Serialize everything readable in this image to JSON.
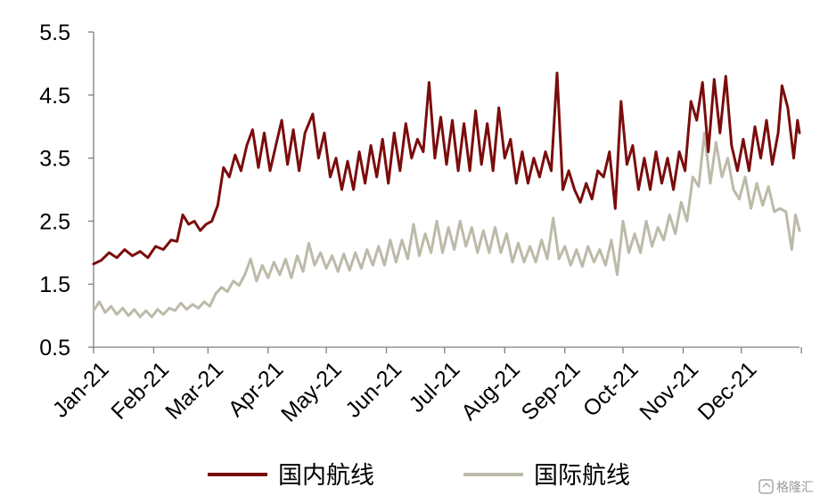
{
  "chart_data": {
    "type": "line",
    "title": "",
    "xlabel": "",
    "ylabel": "",
    "ylim": [
      0.5,
      5.5
    ],
    "yticks": [
      0.5,
      1.5,
      2.5,
      3.5,
      4.5,
      5.5
    ],
    "ytick_labels": [
      "0.5",
      "1.5",
      "2.5",
      "3.5",
      "4.5",
      "5.5"
    ],
    "xtick_labels": [
      "Jan-21",
      "Feb-21",
      "Mar-21",
      "Apr-21",
      "May-21",
      "Jun-21",
      "Jul-21",
      "Aug-21",
      "Sep-21",
      "Oct-21",
      "Nov-21",
      "Dec-21"
    ],
    "x_range": [
      "2021-01-01",
      "2021-12-31"
    ],
    "grid": false,
    "legend_position": "bottom",
    "series": [
      {
        "name": "国内航线",
        "color": "#7b0c0c",
        "points": [
          [
            "2021-01-01",
            1.82
          ],
          [
            "2021-01-05",
            1.88
          ],
          [
            "2021-01-09",
            2.0
          ],
          [
            "2021-01-13",
            1.92
          ],
          [
            "2021-01-17",
            2.05
          ],
          [
            "2021-01-21",
            1.95
          ],
          [
            "2021-01-25",
            2.02
          ],
          [
            "2021-01-29",
            1.92
          ],
          [
            "2021-02-02",
            2.1
          ],
          [
            "2021-02-06",
            2.05
          ],
          [
            "2021-02-10",
            2.2
          ],
          [
            "2021-02-13",
            2.18
          ],
          [
            "2021-02-16",
            2.6
          ],
          [
            "2021-02-19",
            2.45
          ],
          [
            "2021-02-22",
            2.5
          ],
          [
            "2021-02-25",
            2.35
          ],
          [
            "2021-02-28",
            2.45
          ],
          [
            "2021-03-03",
            2.5
          ],
          [
            "2021-03-06",
            2.75
          ],
          [
            "2021-03-09",
            3.35
          ],
          [
            "2021-03-12",
            3.2
          ],
          [
            "2021-03-15",
            3.55
          ],
          [
            "2021-03-18",
            3.3
          ],
          [
            "2021-03-21",
            3.7
          ],
          [
            "2021-03-24",
            3.95
          ],
          [
            "2021-03-27",
            3.35
          ],
          [
            "2021-03-30",
            3.9
          ],
          [
            "2021-04-02",
            3.3
          ],
          [
            "2021-04-05",
            3.7
          ],
          [
            "2021-04-08",
            4.1
          ],
          [
            "2021-04-11",
            3.4
          ],
          [
            "2021-04-14",
            3.95
          ],
          [
            "2021-04-17",
            3.3
          ],
          [
            "2021-04-20",
            3.9
          ],
          [
            "2021-04-24",
            4.2
          ],
          [
            "2021-04-27",
            3.5
          ],
          [
            "2021-04-30",
            3.9
          ],
          [
            "2021-05-03",
            3.2
          ],
          [
            "2021-05-06",
            3.5
          ],
          [
            "2021-05-09",
            3.0
          ],
          [
            "2021-05-12",
            3.45
          ],
          [
            "2021-05-15",
            3.0
          ],
          [
            "2021-05-18",
            3.6
          ],
          [
            "2021-05-21",
            3.1
          ],
          [
            "2021-05-24",
            3.7
          ],
          [
            "2021-05-27",
            3.2
          ],
          [
            "2021-05-30",
            3.8
          ],
          [
            "2021-06-02",
            3.1
          ],
          [
            "2021-06-05",
            3.9
          ],
          [
            "2021-06-08",
            3.3
          ],
          [
            "2021-06-11",
            4.05
          ],
          [
            "2021-06-14",
            3.5
          ],
          [
            "2021-06-17",
            3.8
          ],
          [
            "2021-06-20",
            3.6
          ],
          [
            "2021-06-23",
            4.7
          ],
          [
            "2021-06-26",
            3.5
          ],
          [
            "2021-06-29",
            4.15
          ],
          [
            "2021-07-02",
            3.4
          ],
          [
            "2021-07-05",
            4.1
          ],
          [
            "2021-07-08",
            3.3
          ],
          [
            "2021-07-11",
            4.05
          ],
          [
            "2021-07-14",
            3.3
          ],
          [
            "2021-07-17",
            4.25
          ],
          [
            "2021-07-20",
            3.4
          ],
          [
            "2021-07-23",
            4.05
          ],
          [
            "2021-07-26",
            3.3
          ],
          [
            "2021-07-29",
            4.3
          ],
          [
            "2021-08-01",
            3.5
          ],
          [
            "2021-08-04",
            3.8
          ],
          [
            "2021-08-07",
            3.1
          ],
          [
            "2021-08-10",
            3.6
          ],
          [
            "2021-08-13",
            3.1
          ],
          [
            "2021-08-16",
            3.5
          ],
          [
            "2021-08-19",
            3.2
          ],
          [
            "2021-08-22",
            3.6
          ],
          [
            "2021-08-25",
            3.3
          ],
          [
            "2021-08-28",
            4.85
          ],
          [
            "2021-08-31",
            3.0
          ],
          [
            "2021-09-03",
            3.3
          ],
          [
            "2021-09-06",
            3.0
          ],
          [
            "2021-09-09",
            2.8
          ],
          [
            "2021-09-12",
            3.1
          ],
          [
            "2021-09-15",
            2.85
          ],
          [
            "2021-09-18",
            3.3
          ],
          [
            "2021-09-21",
            3.2
          ],
          [
            "2021-09-24",
            3.6
          ],
          [
            "2021-09-27",
            2.7
          ],
          [
            "2021-09-30",
            4.4
          ],
          [
            "2021-10-03",
            3.4
          ],
          [
            "2021-10-06",
            3.7
          ],
          [
            "2021-10-09",
            3.0
          ],
          [
            "2021-10-12",
            3.5
          ],
          [
            "2021-10-15",
            3.0
          ],
          [
            "2021-10-18",
            3.6
          ],
          [
            "2021-10-21",
            3.1
          ],
          [
            "2021-10-24",
            3.5
          ],
          [
            "2021-10-27",
            3.0
          ],
          [
            "2021-10-30",
            3.6
          ],
          [
            "2021-11-02",
            3.3
          ],
          [
            "2021-11-05",
            4.4
          ],
          [
            "2021-11-08",
            4.1
          ],
          [
            "2021-11-11",
            4.7
          ],
          [
            "2021-11-14",
            3.6
          ],
          [
            "2021-11-17",
            4.75
          ],
          [
            "2021-11-20",
            3.9
          ],
          [
            "2021-11-23",
            4.8
          ],
          [
            "2021-11-26",
            3.7
          ],
          [
            "2021-11-29",
            3.3
          ],
          [
            "2021-12-02",
            3.8
          ],
          [
            "2021-12-05",
            3.3
          ],
          [
            "2021-12-08",
            4.0
          ],
          [
            "2021-12-11",
            3.5
          ],
          [
            "2021-12-14",
            4.1
          ],
          [
            "2021-12-17",
            3.4
          ],
          [
            "2021-12-20",
            3.9
          ],
          [
            "2021-12-22",
            4.65
          ],
          [
            "2021-12-25",
            4.3
          ],
          [
            "2021-12-28",
            3.5
          ],
          [
            "2021-12-30",
            4.1
          ],
          [
            "2021-12-31",
            3.9
          ]
        ]
      },
      {
        "name": "国际航线",
        "color": "#bcbaa8",
        "points": [
          [
            "2021-01-01",
            1.08
          ],
          [
            "2021-01-04",
            1.22
          ],
          [
            "2021-01-07",
            1.05
          ],
          [
            "2021-01-10",
            1.15
          ],
          [
            "2021-01-13",
            1.02
          ],
          [
            "2021-01-16",
            1.12
          ],
          [
            "2021-01-19",
            1.0
          ],
          [
            "2021-01-22",
            1.1
          ],
          [
            "2021-01-25",
            0.98
          ],
          [
            "2021-01-28",
            1.08
          ],
          [
            "2021-01-31",
            0.98
          ],
          [
            "2021-02-03",
            1.1
          ],
          [
            "2021-02-06",
            1.02
          ],
          [
            "2021-02-09",
            1.12
          ],
          [
            "2021-02-12",
            1.08
          ],
          [
            "2021-02-15",
            1.2
          ],
          [
            "2021-02-18",
            1.1
          ],
          [
            "2021-02-21",
            1.18
          ],
          [
            "2021-02-24",
            1.12
          ],
          [
            "2021-02-27",
            1.22
          ],
          [
            "2021-03-02",
            1.15
          ],
          [
            "2021-03-05",
            1.35
          ],
          [
            "2021-03-08",
            1.45
          ],
          [
            "2021-03-11",
            1.38
          ],
          [
            "2021-03-14",
            1.55
          ],
          [
            "2021-03-17",
            1.48
          ],
          [
            "2021-03-20",
            1.65
          ],
          [
            "2021-03-23",
            1.9
          ],
          [
            "2021-03-26",
            1.55
          ],
          [
            "2021-03-29",
            1.8
          ],
          [
            "2021-04-01",
            1.6
          ],
          [
            "2021-04-04",
            1.85
          ],
          [
            "2021-04-07",
            1.65
          ],
          [
            "2021-04-10",
            1.9
          ],
          [
            "2021-04-13",
            1.6
          ],
          [
            "2021-04-16",
            1.95
          ],
          [
            "2021-04-19",
            1.7
          ],
          [
            "2021-04-22",
            2.15
          ],
          [
            "2021-04-25",
            1.8
          ],
          [
            "2021-04-28",
            2.0
          ],
          [
            "2021-05-01",
            1.75
          ],
          [
            "2021-05-04",
            1.95
          ],
          [
            "2021-05-07",
            1.7
          ],
          [
            "2021-05-10",
            1.98
          ],
          [
            "2021-05-13",
            1.72
          ],
          [
            "2021-05-16",
            2.0
          ],
          [
            "2021-05-19",
            1.75
          ],
          [
            "2021-05-22",
            2.05
          ],
          [
            "2021-05-25",
            1.8
          ],
          [
            "2021-05-28",
            2.1
          ],
          [
            "2021-05-31",
            1.8
          ],
          [
            "2021-06-03",
            2.2
          ],
          [
            "2021-06-06",
            1.85
          ],
          [
            "2021-06-09",
            2.2
          ],
          [
            "2021-06-12",
            1.9
          ],
          [
            "2021-06-15",
            2.45
          ],
          [
            "2021-06-18",
            1.95
          ],
          [
            "2021-06-21",
            2.3
          ],
          [
            "2021-06-24",
            2.0
          ],
          [
            "2021-06-27",
            2.5
          ],
          [
            "2021-06-30",
            2.0
          ],
          [
            "2021-07-03",
            2.4
          ],
          [
            "2021-07-06",
            2.05
          ],
          [
            "2021-07-09",
            2.5
          ],
          [
            "2021-07-12",
            2.1
          ],
          [
            "2021-07-15",
            2.4
          ],
          [
            "2021-07-18",
            2.0
          ],
          [
            "2021-07-21",
            2.35
          ],
          [
            "2021-07-24",
            2.0
          ],
          [
            "2021-07-27",
            2.4
          ],
          [
            "2021-07-30",
            2.0
          ],
          [
            "2021-08-02",
            2.3
          ],
          [
            "2021-08-05",
            1.85
          ],
          [
            "2021-08-08",
            2.15
          ],
          [
            "2021-08-11",
            1.85
          ],
          [
            "2021-08-14",
            2.1
          ],
          [
            "2021-08-17",
            1.85
          ],
          [
            "2021-08-20",
            2.2
          ],
          [
            "2021-08-23",
            1.9
          ],
          [
            "2021-08-26",
            2.55
          ],
          [
            "2021-08-29",
            1.9
          ],
          [
            "2021-09-01",
            2.1
          ],
          [
            "2021-09-04",
            1.8
          ],
          [
            "2021-09-07",
            2.05
          ],
          [
            "2021-09-10",
            1.78
          ],
          [
            "2021-09-13",
            2.1
          ],
          [
            "2021-09-16",
            1.85
          ],
          [
            "2021-09-19",
            2.05
          ],
          [
            "2021-09-22",
            1.8
          ],
          [
            "2021-09-25",
            2.2
          ],
          [
            "2021-09-28",
            1.65
          ],
          [
            "2021-10-01",
            2.5
          ],
          [
            "2021-10-04",
            2.0
          ],
          [
            "2021-10-07",
            2.3
          ],
          [
            "2021-10-10",
            2.0
          ],
          [
            "2021-10-13",
            2.5
          ],
          [
            "2021-10-16",
            2.1
          ],
          [
            "2021-10-19",
            2.4
          ],
          [
            "2021-10-22",
            2.2
          ],
          [
            "2021-10-25",
            2.6
          ],
          [
            "2021-10-28",
            2.3
          ],
          [
            "2021-10-31",
            2.8
          ],
          [
            "2021-11-03",
            2.5
          ],
          [
            "2021-11-06",
            3.2
          ],
          [
            "2021-11-09",
            3.05
          ],
          [
            "2021-11-12",
            3.9
          ],
          [
            "2021-11-15",
            3.1
          ],
          [
            "2021-11-18",
            3.75
          ],
          [
            "2021-11-21",
            3.2
          ],
          [
            "2021-11-24",
            3.5
          ],
          [
            "2021-11-27",
            3.0
          ],
          [
            "2021-11-30",
            2.85
          ],
          [
            "2021-12-03",
            3.2
          ],
          [
            "2021-12-06",
            2.7
          ],
          [
            "2021-12-09",
            3.1
          ],
          [
            "2021-12-12",
            2.75
          ],
          [
            "2021-12-15",
            3.05
          ],
          [
            "2021-12-18",
            2.65
          ],
          [
            "2021-12-21",
            2.7
          ],
          [
            "2021-12-24",
            2.65
          ],
          [
            "2021-12-27",
            2.05
          ],
          [
            "2021-12-29",
            2.6
          ],
          [
            "2021-12-31",
            2.35
          ]
        ]
      }
    ]
  },
  "watermark": "格隆汇"
}
